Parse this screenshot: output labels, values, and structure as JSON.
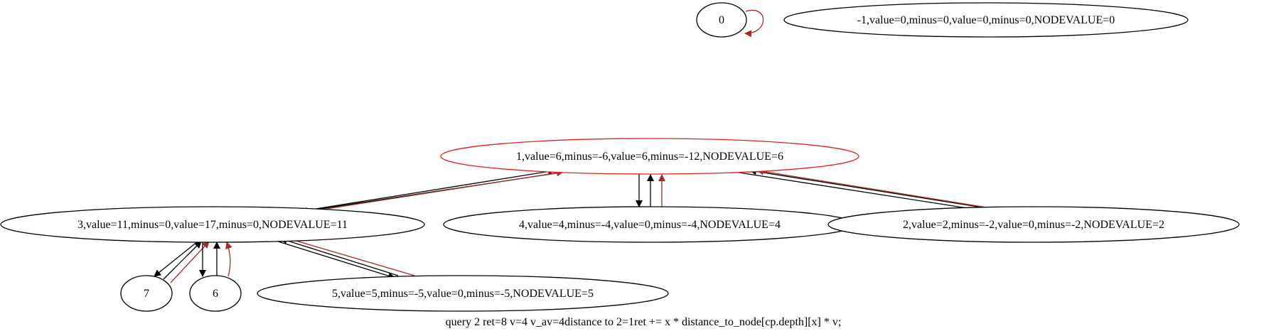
{
  "graph": {
    "colors": {
      "black": "#000000",
      "red": "#a52a2a",
      "highlight": "#e0201c"
    },
    "caption": "query 2 ret=8 v=4 v_av=4distance to 2=1ret += x * distance_to_node[cp.depth][x] * v;",
    "nodes": [
      {
        "id": "n0",
        "label": "0",
        "highlight": false
      },
      {
        "id": "nm1",
        "label": "-1,value=0,minus=0,value=0,minus=0,NODEVALUE=0",
        "highlight": false
      },
      {
        "id": "n1",
        "label": "1,value=6,minus=-6,value=6,minus=-12,NODEVALUE=6",
        "highlight": true
      },
      {
        "id": "n3",
        "label": "3,value=11,minus=0,value=17,minus=0,NODEVALUE=11",
        "highlight": false
      },
      {
        "id": "n4",
        "label": "4,value=4,minus=-4,value=0,minus=-4,NODEVALUE=4",
        "highlight": false
      },
      {
        "id": "n2",
        "label": "2,value=2,minus=-2,value=0,minus=-2,NODEVALUE=2",
        "highlight": false
      },
      {
        "id": "n7",
        "label": "7",
        "highlight": false
      },
      {
        "id": "n6",
        "label": "6",
        "highlight": false
      },
      {
        "id": "n5",
        "label": "5,value=5,minus=-5,value=0,minus=-5,NODEVALUE=5",
        "highlight": false
      }
    ],
    "edges": [
      {
        "from": "n0",
        "to": "n0",
        "color": "red"
      },
      {
        "from": "n1",
        "to": "n3",
        "color": "black"
      },
      {
        "from": "n3",
        "to": "n1",
        "color": "black"
      },
      {
        "from": "n3",
        "to": "n1",
        "color": "red"
      },
      {
        "from": "n1",
        "to": "n4",
        "color": "black"
      },
      {
        "from": "n4",
        "to": "n1",
        "color": "black"
      },
      {
        "from": "n4",
        "to": "n1",
        "color": "red"
      },
      {
        "from": "n1",
        "to": "n2",
        "color": "black"
      },
      {
        "from": "n2",
        "to": "n1",
        "color": "black"
      },
      {
        "from": "n2",
        "to": "n1",
        "color": "red"
      },
      {
        "from": "n3",
        "to": "n7",
        "color": "black"
      },
      {
        "from": "n7",
        "to": "n3",
        "color": "black"
      },
      {
        "from": "n7",
        "to": "n3",
        "color": "red"
      },
      {
        "from": "n3",
        "to": "n6",
        "color": "black"
      },
      {
        "from": "n6",
        "to": "n3",
        "color": "black"
      },
      {
        "from": "n6",
        "to": "n3",
        "color": "red"
      },
      {
        "from": "n3",
        "to": "n5",
        "color": "black"
      },
      {
        "from": "n5",
        "to": "n3",
        "color": "black"
      },
      {
        "from": "n5",
        "to": "n3",
        "color": "red"
      }
    ]
  }
}
